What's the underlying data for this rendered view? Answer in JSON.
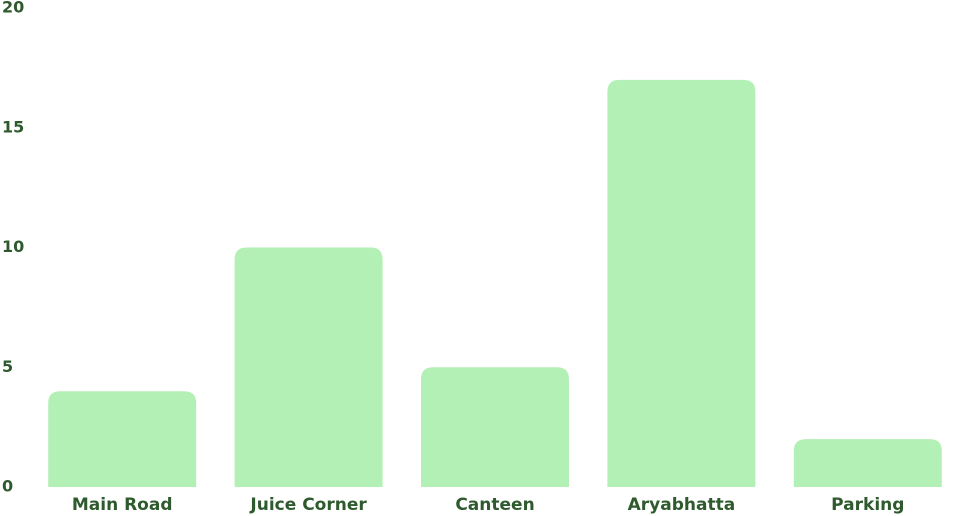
{
  "chart_data": {
    "type": "bar",
    "title": "",
    "xlabel": "",
    "ylabel": "",
    "categories": [
      "Main Road",
      "Juice Corner",
      "Canteen",
      "Aryabhatta",
      "Parking"
    ],
    "values": [
      4,
      10,
      5,
      17,
      2
    ],
    "ylim": [
      0,
      20
    ],
    "yticks": [
      "0",
      "5",
      "10",
      "15",
      "20"
    ],
    "grid": false,
    "legend": "none",
    "colors": {
      "bar": "#b3f0b5",
      "text": "#2e5a2e"
    }
  }
}
